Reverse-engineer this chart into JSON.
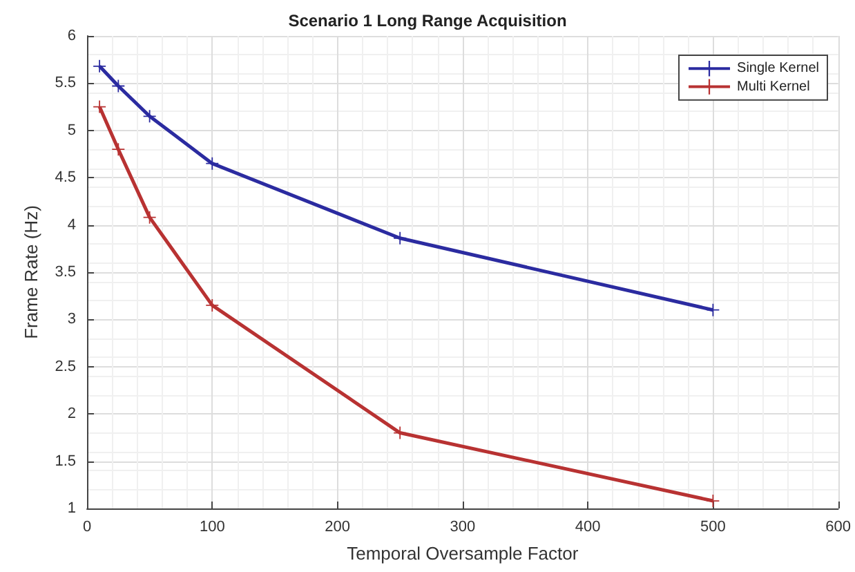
{
  "chart_data": {
    "type": "line",
    "title": "Scenario 1 Long Range Acquisition",
    "xlabel": "Temporal Oversample Factor",
    "ylabel": "Frame Rate (Hz)",
    "series": [
      {
        "name": "Single Kernel",
        "color": "#2b2ba0",
        "x": [
          10,
          25,
          50,
          100,
          250,
          500
        ],
        "values": [
          5.68,
          5.47,
          5.15,
          4.65,
          3.86,
          3.1
        ]
      },
      {
        "name": "Multi Kernel",
        "color": "#b83232",
        "x": [
          10,
          25,
          50,
          100,
          250,
          500
        ],
        "values": [
          5.25,
          4.8,
          4.08,
          3.15,
          1.8,
          1.08
        ]
      }
    ],
    "xlim": [
      0,
      600
    ],
    "xticks": [
      0,
      100,
      200,
      300,
      400,
      500,
      600
    ],
    "ylim": [
      1,
      6
    ],
    "yticks": [
      1,
      1.5,
      2,
      2.5,
      3,
      3.5,
      4,
      4.5,
      5,
      5.5,
      6
    ],
    "grid": true,
    "legend": "top right",
    "marker": "cross",
    "line_style": "solid"
  }
}
